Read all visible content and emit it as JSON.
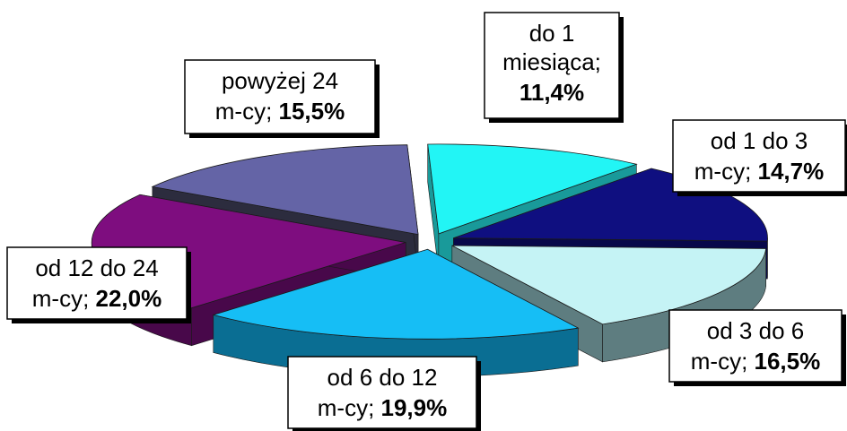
{
  "chart_data": {
    "type": "pie",
    "style": "3d-exploded",
    "title": "",
    "slices": [
      {
        "label_lines": [
          "do 1",
          "miesiąca;"
        ],
        "percent_label": "11,4%",
        "value": 11.4,
        "top_color": "#22F5F5",
        "side_color": "#199A9A"
      },
      {
        "label_lines": [
          "od 1 do 3",
          "m-cy;"
        ],
        "percent_label": "14,7%",
        "value": 14.7,
        "top_color": "#0F0F80",
        "side_color": "#08084A"
      },
      {
        "label_lines": [
          "od 3 do 6",
          "m-cy;"
        ],
        "percent_label": "16,5%",
        "value": 16.5,
        "top_color": "#C5F3F5",
        "side_color": "#5E7D80"
      },
      {
        "label_lines": [
          "od 6 do 12",
          "m-cy;"
        ],
        "percent_label": "19,9%",
        "value": 19.9,
        "top_color": "#16BEF5",
        "side_color": "#0A6E93"
      },
      {
        "label_lines": [
          "od 12 do 24",
          "m-cy;"
        ],
        "percent_label": "22,0%",
        "value": 22.0,
        "top_color": "#7E0D7F",
        "side_color": "#48084A"
      },
      {
        "label_lines": [
          "powyżej 24",
          "m-cy;"
        ],
        "percent_label": "15,5%",
        "value": 15.5,
        "top_color": "#6464A6",
        "side_color": "#2C2C3E"
      }
    ]
  }
}
